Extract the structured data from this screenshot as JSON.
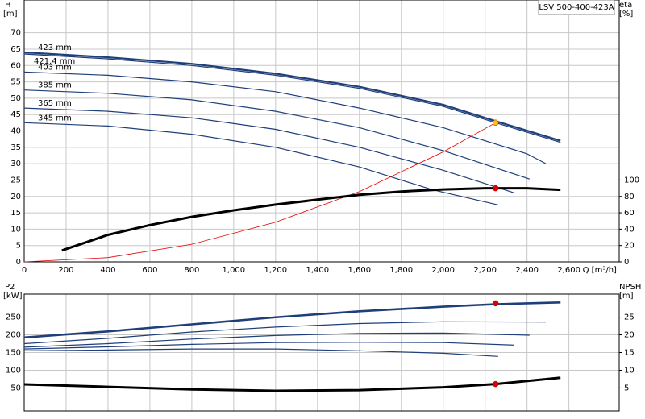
{
  "chart_data": [
    {
      "type": "line",
      "title": "LSV 500-400-423A",
      "x_label": "Q [m³/h]",
      "y_label": "H",
      "y_unit": "[m]",
      "y2_label": "eta",
      "y2_unit": "[%]",
      "xlim": [
        0,
        2840
      ],
      "xticks": [
        0,
        200,
        400,
        600,
        800,
        {
          "value": 1000,
          "label": "1,000"
        },
        {
          "value": 1200,
          "label": "1,200"
        },
        {
          "value": 1400,
          "label": "1,400"
        },
        {
          "value": 1600,
          "label": "1,600"
        },
        {
          "value": 1800,
          "label": "1,800"
        },
        {
          "value": 2000,
          "label": "2,000"
        },
        {
          "value": 2200,
          "label": "2,200"
        },
        {
          "value": 2400,
          "label": "2,400"
        },
        {
          "value": 2600,
          "label": "2,600"
        }
      ],
      "ylim": [
        0,
        80
      ],
      "yticks": [
        0,
        5,
        10,
        15,
        20,
        25,
        30,
        35,
        40,
        45,
        50,
        55,
        60,
        65,
        70
      ],
      "y2lim": [
        0,
        320
      ],
      "y2ticks": [
        0,
        20,
        40,
        60,
        80,
        100
      ],
      "grid": true,
      "series": [
        {
          "name": "423 mm",
          "color": "#1f3f7a",
          "width": 2.2,
          "x": [
            0,
            400,
            800,
            1200,
            1600,
            2000,
            2250,
            2560
          ],
          "values": [
            64,
            62.5,
            60.5,
            57.5,
            53.5,
            48,
            43,
            37
          ]
        },
        {
          "name": "421.4 mm",
          "color": "#1f3f7a",
          "width": 1.2,
          "x": [
            0,
            400,
            800,
            1200,
            1600,
            2000,
            2250,
            2560
          ],
          "values": [
            63.5,
            62,
            60,
            57,
            53,
            47.5,
            42.5,
            36.5
          ]
        },
        {
          "name": "403 mm",
          "color": "#1f3f7a",
          "width": 1.2,
          "x": [
            0,
            400,
            800,
            1200,
            1600,
            2000,
            2400,
            2490
          ],
          "values": [
            58,
            57,
            55,
            52,
            47,
            41,
            33,
            30
          ]
        },
        {
          "name": "385 mm",
          "color": "#1f3f7a",
          "width": 1.2,
          "x": [
            0,
            400,
            800,
            1200,
            1600,
            2000,
            2412
          ],
          "values": [
            52.5,
            51.5,
            49.5,
            46,
            41,
            34,
            25.3
          ]
        },
        {
          "name": "365 mm",
          "color": "#1f3f7a",
          "width": 1.2,
          "x": [
            0,
            400,
            800,
            1200,
            1600,
            2000,
            2338
          ],
          "values": [
            47,
            46,
            44,
            40.5,
            35,
            28,
            21.1
          ]
        },
        {
          "name": "345 mm",
          "color": "#1f3f7a",
          "width": 1.2,
          "x": [
            0,
            400,
            800,
            1200,
            1600,
            1950,
            2262
          ],
          "values": [
            42.5,
            41.5,
            39,
            35,
            29,
            22,
            17.4
          ]
        },
        {
          "color": "#e00000",
          "width": 0.8,
          "x": [
            0,
            400,
            800,
            1200,
            1600,
            2000,
            2250
          ],
          "values": [
            0,
            1.3,
            5.4,
            12.1,
            21.5,
            33.6,
            42.5
          ]
        },
        {
          "color": "#000000",
          "width": 3,
          "axis": "y2",
          "x": [
            180,
            400,
            600,
            800,
            1000,
            1200,
            1400,
            1600,
            1800,
            2000,
            2200,
            2400,
            2560
          ],
          "values": [
            14,
            33,
            45,
            55,
            63,
            70,
            76,
            82,
            86,
            88.5,
            90,
            90,
            88
          ]
        }
      ],
      "points": [
        {
          "x": 2250,
          "y": 42.5,
          "color": "#f5c518"
        },
        {
          "x": 2250,
          "y": 90,
          "axis": "y2",
          "color": "#e00000"
        }
      ]
    },
    {
      "type": "line",
      "y_label": "P2",
      "y_unit": "[kW]",
      "y2_label": "NPSH",
      "y2_unit": "[m]",
      "xlim": [
        0,
        2840
      ],
      "ylim": [
        -15,
        315
      ],
      "yticks": [
        50,
        100,
        150,
        200,
        250
      ],
      "y2lim": [
        -1.5,
        31.5
      ],
      "y2ticks": [
        5,
        10,
        15,
        20,
        25
      ],
      "grid": true,
      "series": [
        {
          "color": "#1f3f7a",
          "width": 2.2,
          "x": [
            0,
            400,
            800,
            1200,
            1600,
            2000,
            2250,
            2560
          ],
          "values": [
            193,
            210,
            230,
            250,
            267,
            280,
            287,
            292
          ]
        },
        {
          "color": "#1f3f7a",
          "width": 1.2,
          "x": [
            0,
            400,
            800,
            1200,
            1600,
            2000,
            2250,
            2560
          ],
          "values": [
            191,
            208,
            228,
            248,
            265,
            278,
            285,
            290
          ]
        },
        {
          "color": "#1f3f7a",
          "width": 1.2,
          "x": [
            0,
            400,
            800,
            1200,
            1600,
            2000,
            2490
          ],
          "values": [
            175,
            190,
            208,
            222,
            232,
            237,
            236
          ]
        },
        {
          "color": "#1f3f7a",
          "width": 1.2,
          "x": [
            0,
            400,
            800,
            1200,
            1600,
            2000,
            2412
          ],
          "values": [
            165,
            175,
            188,
            198,
            204,
            205,
            199
          ]
        },
        {
          "color": "#1f3f7a",
          "width": 1.2,
          "x": [
            0,
            400,
            800,
            1200,
            1600,
            2000,
            2338
          ],
          "values": [
            160,
            166,
            173,
            178,
            179,
            178,
            171
          ]
        },
        {
          "color": "#1f3f7a",
          "width": 1.2,
          "x": [
            0,
            400,
            800,
            1200,
            1600,
            2000,
            2262
          ],
          "values": [
            155,
            157,
            160,
            160,
            155,
            148,
            139
          ]
        },
        {
          "color": "#000000",
          "width": 3,
          "axis": "y2",
          "x": [
            0,
            400,
            800,
            1200,
            1600,
            2000,
            2250,
            2560
          ],
          "values": [
            6,
            5.3,
            4.6,
            4.2,
            4.4,
            5.2,
            6.1,
            7.9
          ]
        }
      ],
      "points": [
        {
          "x": 2250,
          "y": 289,
          "color": "#e00000"
        },
        {
          "x": 2250,
          "y": 6.1,
          "axis": "y2",
          "color": "#e00000"
        }
      ]
    }
  ]
}
